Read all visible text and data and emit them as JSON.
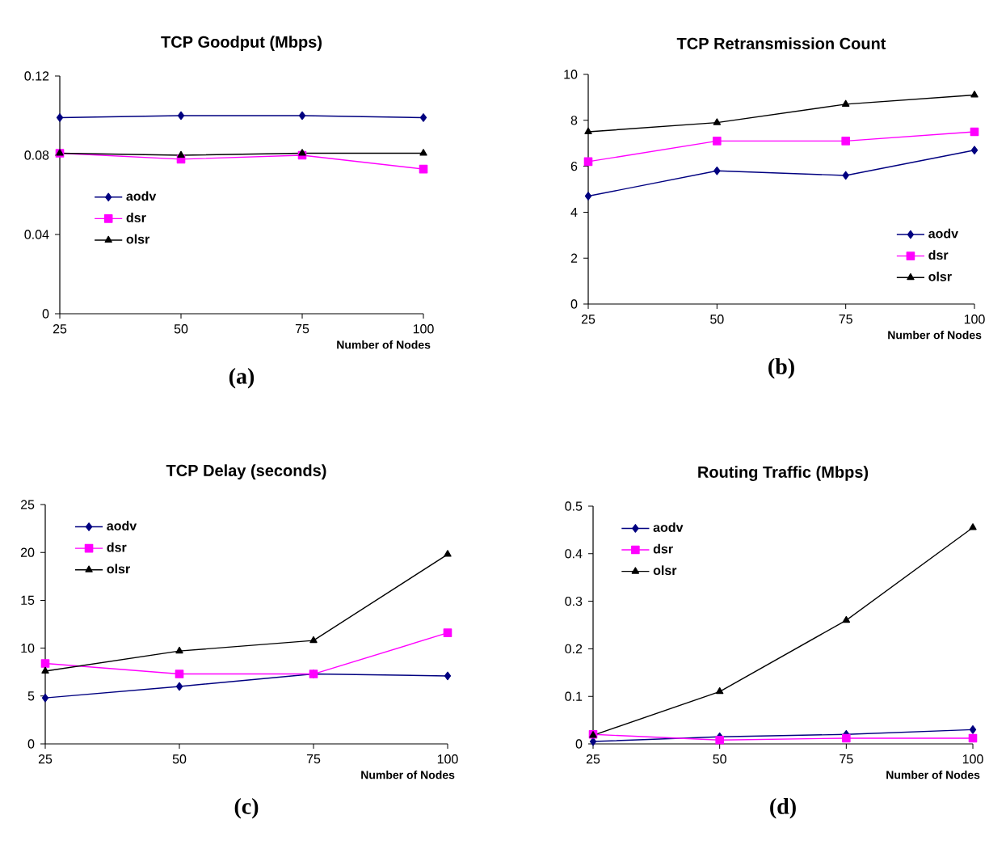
{
  "chart_data": [
    {
      "type": "line",
      "title": "TCP Goodput (Mbps)",
      "xlabel": "Number of Nodes",
      "categories": [
        "25",
        "50",
        "75",
        "100"
      ],
      "ylim": [
        0,
        0.12
      ],
      "yticks": [
        0,
        0.04,
        0.08,
        0.12
      ],
      "legend": "left",
      "line_style": "solid",
      "annotations": [
        "(a)"
      ],
      "series": [
        {
          "name": "aodv",
          "color": "#000080",
          "marker": "diamond",
          "values": [
            0.099,
            0.1,
            0.1,
            0.099
          ]
        },
        {
          "name": "dsr",
          "color": "#ff00ff",
          "marker": "square",
          "values": [
            0.081,
            0.078,
            0.08,
            0.073
          ]
        },
        {
          "name": "olsr",
          "color": "#000000",
          "marker": "triangle",
          "values": [
            0.081,
            0.08,
            0.081,
            0.081
          ]
        }
      ]
    },
    {
      "type": "line",
      "title": "TCP Retransmission Count",
      "xlabel": "Number of Nodes",
      "categories": [
        "25",
        "50",
        "75",
        "100"
      ],
      "ylim": [
        0,
        10
      ],
      "yticks": [
        0,
        2,
        4,
        6,
        8,
        10
      ],
      "legend": "bottom right",
      "line_style": "solid",
      "annotations": [
        "(b)"
      ],
      "series": [
        {
          "name": "aodv",
          "color": "#000080",
          "marker": "diamond",
          "values": [
            4.7,
            5.8,
            5.6,
            6.7
          ]
        },
        {
          "name": "dsr",
          "color": "#ff00ff",
          "marker": "square",
          "values": [
            6.2,
            7.1,
            7.1,
            7.5
          ]
        },
        {
          "name": "olsr",
          "color": "#000000",
          "marker": "triangle",
          "values": [
            7.5,
            7.9,
            8.7,
            9.1
          ]
        }
      ]
    },
    {
      "type": "line",
      "title": "TCP Delay (seconds)",
      "xlabel": "Number of Nodes",
      "categories": [
        "25",
        "50",
        "75",
        "100"
      ],
      "ylim": [
        0,
        25
      ],
      "yticks": [
        0,
        5,
        10,
        15,
        20,
        25
      ],
      "legend": "top left",
      "line_style": "solid",
      "annotations": [
        "(c)"
      ],
      "series": [
        {
          "name": "aodv",
          "color": "#000080",
          "marker": "diamond",
          "values": [
            4.8,
            6.0,
            7.3,
            7.1
          ]
        },
        {
          "name": "dsr",
          "color": "#ff00ff",
          "marker": "square",
          "values": [
            8.4,
            7.3,
            7.3,
            11.6
          ]
        },
        {
          "name": "olsr",
          "color": "#000000",
          "marker": "triangle",
          "values": [
            7.6,
            9.7,
            10.8,
            19.8
          ]
        }
      ]
    },
    {
      "type": "line",
      "title": "Routing Traffic (Mbps)",
      "xlabel": "Number of Nodes",
      "categories": [
        "25",
        "50",
        "75",
        "100"
      ],
      "ylim": [
        0,
        0.5
      ],
      "yticks": [
        0,
        0.1,
        0.2,
        0.3,
        0.4,
        0.5
      ],
      "legend": "top left",
      "line_style": "solid",
      "annotations": [
        "(d)"
      ],
      "series": [
        {
          "name": "aodv",
          "color": "#000080",
          "marker": "diamond",
          "values": [
            0.005,
            0.015,
            0.02,
            0.03
          ]
        },
        {
          "name": "dsr",
          "color": "#ff00ff",
          "marker": "square",
          "values": [
            0.02,
            0.008,
            0.012,
            0.012
          ]
        },
        {
          "name": "olsr",
          "color": "#000000",
          "marker": "triangle",
          "values": [
            0.018,
            0.11,
            0.26,
            0.455
          ]
        }
      ]
    }
  ]
}
